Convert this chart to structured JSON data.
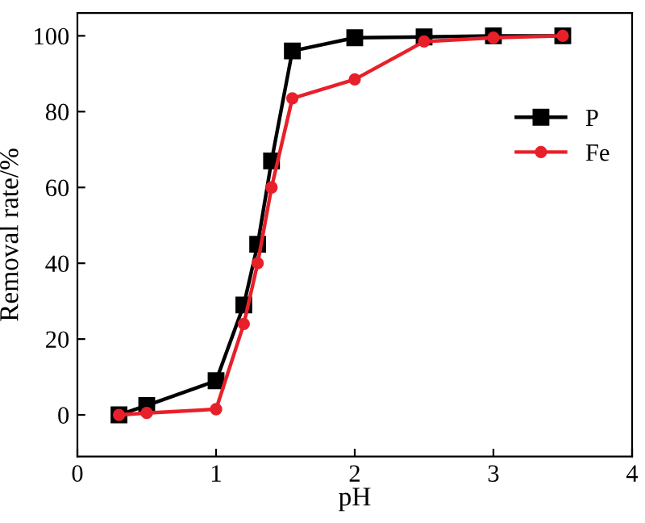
{
  "chart_data": {
    "type": "line",
    "xlabel": "pH",
    "ylabel": "Removal rate/%",
    "xlim": [
      0,
      4
    ],
    "xticks": [
      0,
      1,
      2,
      3,
      4
    ],
    "ylim": [
      -11,
      106
    ],
    "yticks": [
      0,
      20,
      40,
      60,
      80,
      100
    ],
    "legend": "right",
    "grid": false,
    "series": [
      {
        "name": "P",
        "color": "#000000",
        "marker": "square",
        "x": [
          0.3,
          0.5,
          1.0,
          1.2,
          1.3,
          1.4,
          1.55,
          2.0,
          2.5,
          3.0,
          3.5
        ],
        "values": [
          0,
          2.5,
          9,
          29,
          45,
          67,
          96,
          99.5,
          99.7,
          100,
          100
        ]
      },
      {
        "name": "Fe",
        "color": "#e8202a",
        "marker": "circle",
        "x": [
          0.3,
          0.5,
          1.0,
          1.2,
          1.3,
          1.4,
          1.55,
          2.0,
          2.5,
          3.0,
          3.5
        ],
        "values": [
          0,
          0.5,
          1.5,
          24,
          40,
          60,
          83.5,
          88.5,
          98.5,
          99.5,
          100
        ]
      }
    ]
  }
}
